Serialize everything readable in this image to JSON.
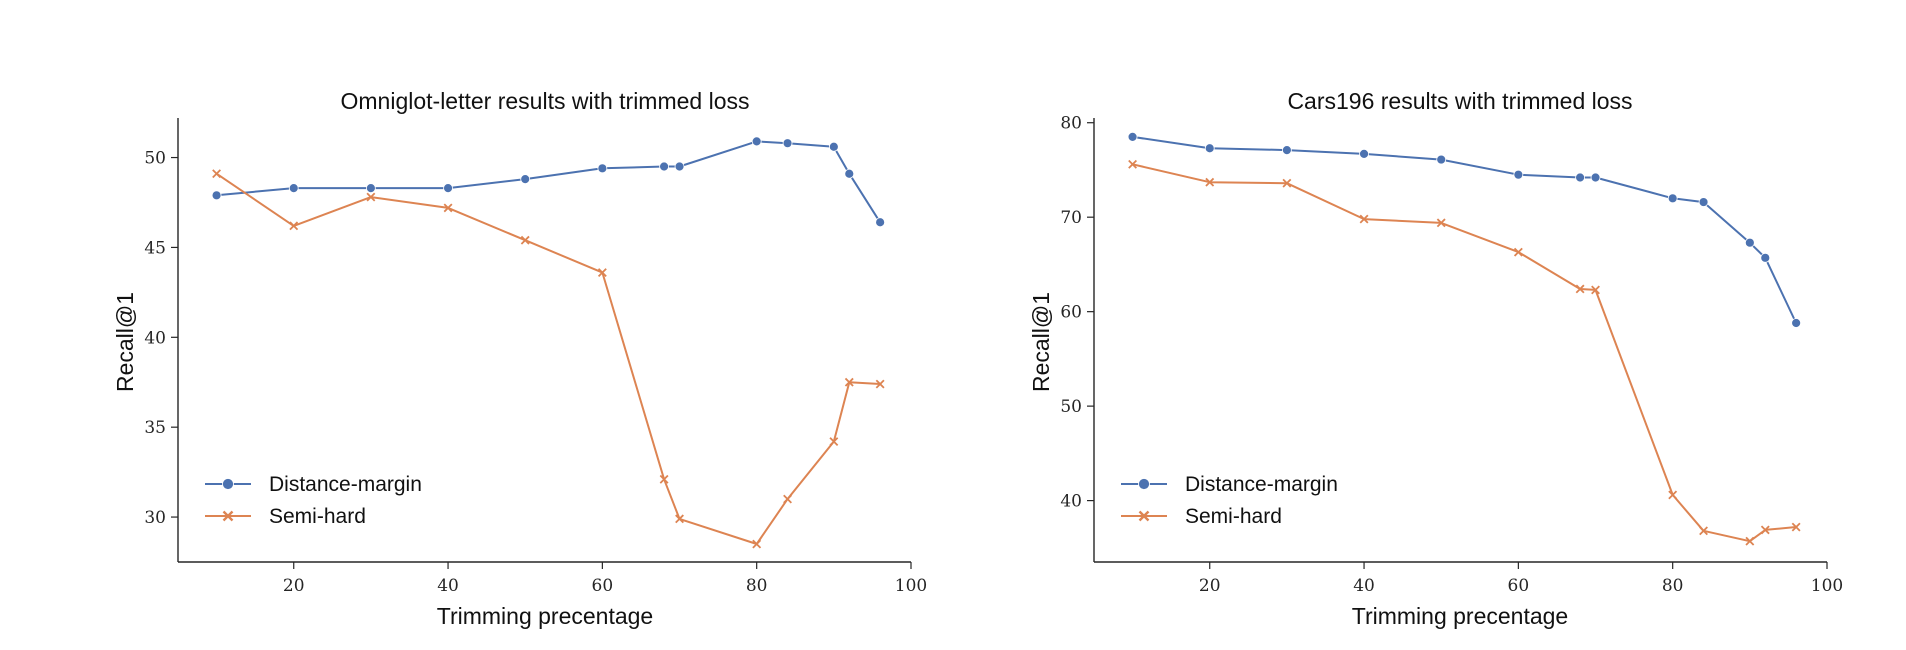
{
  "colors": {
    "distance_margin": "#4c72b0",
    "semi_hard": "#dd8452"
  },
  "chart_data": [
    {
      "type": "line",
      "title": "Omniglot-letter results with trimmed loss",
      "xlabel": "Trimming precentage",
      "ylabel": "Recall@1",
      "xlim": [
        5,
        100
      ],
      "ylim": [
        27.5,
        52.2
      ],
      "xticks": [
        "20",
        "40",
        "60",
        "80",
        "100"
      ],
      "yticks": [
        "30",
        "35",
        "40",
        "45",
        "50"
      ],
      "legend": [
        "Distance-margin",
        "Semi-hard"
      ],
      "series": [
        {
          "name": "Distance-margin",
          "marker": "circle",
          "x": [
            10,
            20,
            30,
            40,
            50,
            60,
            68,
            70,
            80,
            84,
            90,
            92,
            96
          ],
          "y": [
            47.9,
            48.3,
            48.3,
            48.3,
            48.8,
            49.4,
            49.5,
            49.5,
            50.9,
            50.8,
            50.6,
            49.1,
            46.4
          ]
        },
        {
          "name": "Semi-hard",
          "marker": "x",
          "x": [
            10,
            20,
            30,
            40,
            50,
            60,
            68,
            70,
            80,
            84,
            90,
            92,
            96
          ],
          "y": [
            49.1,
            46.2,
            47.8,
            47.2,
            45.4,
            43.6,
            32.1,
            29.9,
            28.5,
            31.0,
            34.2,
            37.5,
            37.4
          ]
        }
      ]
    },
    {
      "type": "line",
      "title": "Cars196 results with trimmed loss",
      "xlabel": "Trimming precentage",
      "ylabel": "Recall@1",
      "xlim": [
        5,
        100
      ],
      "ylim": [
        33.5,
        80.5
      ],
      "xticks": [
        "20",
        "40",
        "60",
        "80",
        "100"
      ],
      "yticks": [
        "40",
        "50",
        "60",
        "70",
        "80"
      ],
      "legend": [
        "Distance-margin",
        "Semi-hard"
      ],
      "series": [
        {
          "name": "Distance-margin",
          "marker": "circle",
          "x": [
            10,
            20,
            30,
            40,
            50,
            60,
            68,
            70,
            80,
            84,
            90,
            92,
            96
          ],
          "y": [
            78.5,
            77.3,
            77.1,
            76.7,
            76.1,
            74.5,
            74.2,
            74.2,
            72.0,
            71.6,
            67.3,
            65.7,
            58.8
          ]
        },
        {
          "name": "Semi-hard",
          "marker": "x",
          "x": [
            10,
            20,
            30,
            40,
            50,
            60,
            68,
            70,
            80,
            84,
            90,
            92,
            96
          ],
          "y": [
            75.6,
            73.7,
            73.6,
            69.8,
            69.4,
            66.3,
            62.4,
            62.3,
            40.6,
            36.8,
            35.7,
            36.9,
            37.2
          ]
        }
      ]
    }
  ]
}
